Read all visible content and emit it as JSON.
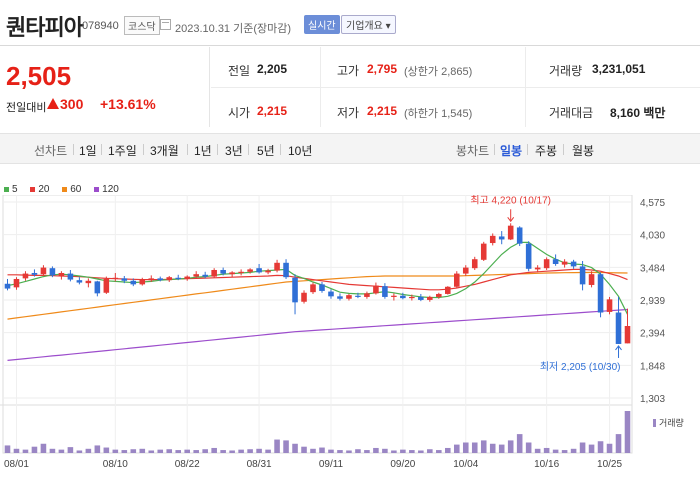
{
  "header": {
    "name": "퀀타피아",
    "code": "078940",
    "market": "코스닥",
    "date": "2023.10.31 기준(장마감)",
    "realtime_label": "실시간",
    "overview_label": "기업개요 ▾"
  },
  "price": {
    "current": "2,505",
    "change_label": "전일대비",
    "change_amount": "300",
    "change_pct": "+13.61%",
    "up_color": "#e62117"
  },
  "stats": {
    "prev_label": "전일",
    "prev": "2,205",
    "high_label": "고가",
    "high": "2,795",
    "upper_limit": "(상한가 2,865)",
    "volume_label": "거래량",
    "volume": "3,231,051",
    "open_label": "시가",
    "open": "2,215",
    "low_label": "저가",
    "low": "2,215",
    "lower_limit": "(하한가 1,545)",
    "amount_label": "거래대금",
    "amount": "8,160 백만"
  },
  "periods": {
    "line_label": "선차트",
    "line_items": [
      "1일",
      "1주일",
      "3개월",
      "1년",
      "3년",
      "5년",
      "10년"
    ],
    "candle_label": "봉차트",
    "candle_items": [
      "일봉",
      "주봉",
      "월봉"
    ],
    "candle_active": "일봉"
  },
  "chart_data": {
    "type": "candlestick",
    "legend": [
      {
        "name": "5",
        "color": "#4caf50"
      },
      {
        "name": "20",
        "color": "#e53935"
      },
      {
        "name": "60",
        "color": "#ef8a1a"
      },
      {
        "name": "120",
        "color": "#9c4dcc"
      }
    ],
    "y_ticks": [
      "4,575",
      "4,030",
      "3,484",
      "2,939",
      "2,394",
      "1,848",
      "1,303"
    ],
    "y_tick_values": [
      4575,
      4030,
      3484,
      2939,
      2394,
      1848,
      1303
    ],
    "ylim": [
      1303,
      4575
    ],
    "x_ticks": [
      "08/01",
      "08/10",
      "08/22",
      "08/31",
      "09/11",
      "09/20",
      "10/04",
      "10/16",
      "10/25"
    ],
    "max_label": "최고 4,220 (10/17)",
    "min_label": "최저 2,205 (10/30)",
    "volume_label": "거래량",
    "up_color": "#e53935",
    "down_color": "#2f6fd6",
    "candles": [
      [
        3210,
        3290,
        3100,
        3130
      ],
      [
        3150,
        3320,
        3110,
        3290
      ],
      [
        3300,
        3420,
        3260,
        3380
      ],
      [
        3390,
        3450,
        3330,
        3360
      ],
      [
        3370,
        3520,
        3340,
        3480
      ],
      [
        3470,
        3500,
        3320,
        3350
      ],
      [
        3340,
        3420,
        3280,
        3390
      ],
      [
        3380,
        3440,
        3250,
        3280
      ],
      [
        3270,
        3320,
        3200,
        3230
      ],
      [
        3220,
        3300,
        3150,
        3260
      ],
      [
        3250,
        3260,
        3000,
        3050
      ],
      [
        3060,
        3330,
        3040,
        3290
      ],
      [
        3300,
        3390,
        3250,
        3310
      ],
      [
        3300,
        3340,
        3220,
        3260
      ],
      [
        3260,
        3300,
        3170,
        3200
      ],
      [
        3200,
        3310,
        3180,
        3280
      ],
      [
        3270,
        3350,
        3240,
        3300
      ],
      [
        3300,
        3330,
        3250,
        3270
      ],
      [
        3270,
        3340,
        3240,
        3320
      ],
      [
        3310,
        3360,
        3270,
        3290
      ],
      [
        3290,
        3350,
        3260,
        3330
      ],
      [
        3330,
        3420,
        3290,
        3370
      ],
      [
        3360,
        3410,
        3300,
        3330
      ],
      [
        3330,
        3470,
        3310,
        3440
      ],
      [
        3440,
        3480,
        3350,
        3380
      ],
      [
        3370,
        3420,
        3320,
        3400
      ],
      [
        3390,
        3450,
        3350,
        3410
      ],
      [
        3410,
        3470,
        3380,
        3450
      ],
      [
        3470,
        3540,
        3380,
        3400
      ],
      [
        3400,
        3460,
        3370,
        3430
      ],
      [
        3430,
        3610,
        3400,
        3560
      ],
      [
        3560,
        3620,
        3290,
        3320
      ],
      [
        3310,
        3370,
        2700,
        2900
      ],
      [
        2910,
        3100,
        2880,
        3060
      ],
      [
        3070,
        3230,
        3040,
        3200
      ],
      [
        3200,
        3240,
        3060,
        3090
      ],
      [
        3080,
        3120,
        2960,
        3000
      ],
      [
        3000,
        3050,
        2930,
        2960
      ],
      [
        2960,
        3040,
        2930,
        3020
      ],
      [
        3010,
        3060,
        2970,
        2990
      ],
      [
        2990,
        3080,
        2960,
        3050
      ],
      [
        3050,
        3230,
        3030,
        3180
      ],
      [
        3170,
        3220,
        2960,
        2990
      ],
      [
        2990,
        3050,
        2930,
        3010
      ],
      [
        3010,
        3060,
        2950,
        2970
      ],
      [
        2970,
        3030,
        2930,
        2990
      ],
      [
        2990,
        3040,
        2920,
        2940
      ],
      [
        2940,
        3010,
        2910,
        2990
      ],
      [
        2990,
        3060,
        2960,
        3040
      ],
      [
        3040,
        3170,
        3030,
        3160
      ],
      [
        3160,
        3420,
        3140,
        3380
      ],
      [
        3380,
        3520,
        3340,
        3480
      ],
      [
        3470,
        3660,
        3440,
        3620
      ],
      [
        3610,
        3910,
        3590,
        3880
      ],
      [
        3890,
        4050,
        3850,
        4010
      ],
      [
        4000,
        4090,
        3870,
        3950
      ],
      [
        3950,
        4220,
        3940,
        4180
      ],
      [
        4150,
        4170,
        3840,
        3880
      ],
      [
        3880,
        3920,
        3420,
        3460
      ],
      [
        3450,
        3520,
        3400,
        3480
      ],
      [
        3470,
        3650,
        3440,
        3620
      ],
      [
        3620,
        3700,
        3510,
        3540
      ],
      [
        3530,
        3620,
        3480,
        3580
      ],
      [
        3580,
        3610,
        3460,
        3500
      ],
      [
        3500,
        3590,
        3100,
        3200
      ],
      [
        3190,
        3420,
        3150,
        3370
      ],
      [
        3370,
        3400,
        2650,
        2730
      ],
      [
        2740,
        2990,
        2700,
        2950
      ],
      [
        2730,
        2990,
        2205,
        2205
      ],
      [
        2215,
        2795,
        2215,
        2505
      ]
    ],
    "ma5": [
      3180,
      3210,
      3250,
      3290,
      3330,
      3360,
      3370,
      3360,
      3340,
      3320,
      3290,
      3260,
      3250,
      3240,
      3230,
      3240,
      3250,
      3270,
      3280,
      3290,
      3300,
      3320,
      3330,
      3350,
      3370,
      3380,
      3390,
      3400,
      3420,
      3430,
      3440,
      3450,
      3350,
      3300,
      3240,
      3190,
      3130,
      3070,
      3050,
      3040,
      3040,
      3060,
      3080,
      3060,
      3030,
      3010,
      2990,
      2980,
      2980,
      3000,
      3050,
      3130,
      3240,
      3380,
      3540,
      3700,
      3820,
      3900,
      3900,
      3800,
      3700,
      3620,
      3560,
      3540,
      3530,
      3480,
      3370,
      3200,
      3000,
      2700
    ],
    "ma20": [
      3360,
      3360,
      3355,
      3350,
      3350,
      3345,
      3340,
      3335,
      3330,
      3320,
      3310,
      3300,
      3295,
      3290,
      3285,
      3280,
      3280,
      3280,
      3285,
      3290,
      3295,
      3300,
      3305,
      3310,
      3315,
      3320,
      3325,
      3330,
      3335,
      3340,
      3350,
      3345,
      3320,
      3300,
      3280,
      3260,
      3240,
      3220,
      3200,
      3190,
      3180,
      3170,
      3160,
      3150,
      3140,
      3130,
      3120,
      3110,
      3110,
      3120,
      3140,
      3170,
      3200,
      3240,
      3280,
      3320,
      3360,
      3380,
      3400,
      3410,
      3420,
      3430,
      3440,
      3450,
      3450,
      3440,
      3420,
      3380,
      3340,
      3280
    ],
    "ma60": [
      2620,
      2640,
      2660,
      2680,
      2700,
      2720,
      2740,
      2760,
      2780,
      2800,
      2820,
      2840,
      2860,
      2880,
      2900,
      2920,
      2940,
      2960,
      2980,
      3000,
      3020,
      3040,
      3060,
      3080,
      3100,
      3120,
      3140,
      3160,
      3180,
      3200,
      3220,
      3240,
      3250,
      3260,
      3270,
      3280,
      3290,
      3300,
      3310,
      3320,
      3330,
      3335,
      3340,
      3340,
      3340,
      3340,
      3340,
      3340,
      3340,
      3340,
      3340,
      3345,
      3350,
      3355,
      3360,
      3365,
      3370,
      3375,
      3380,
      3385,
      3390,
      3392,
      3394,
      3396,
      3398,
      3400,
      3398,
      3395,
      3392,
      3390
    ],
    "ma120": [
      1930,
      1945,
      1960,
      1975,
      1990,
      2005,
      2020,
      2035,
      2050,
      2065,
      2080,
      2095,
      2110,
      2125,
      2140,
      2155,
      2170,
      2185,
      2200,
      2215,
      2230,
      2245,
      2260,
      2275,
      2290,
      2305,
      2320,
      2335,
      2350,
      2365,
      2380,
      2395,
      2410,
      2420,
      2430,
      2440,
      2450,
      2460,
      2470,
      2480,
      2490,
      2500,
      2510,
      2520,
      2530,
      2540,
      2550,
      2560,
      2570,
      2580,
      2590,
      2600,
      2610,
      2620,
      2630,
      2640,
      2650,
      2660,
      2670,
      2680,
      2690,
      2700,
      2710,
      2720,
      2730,
      2740,
      2750,
      2760,
      2770,
      2780
    ],
    "volume": [
      0.18,
      0.1,
      0.08,
      0.15,
      0.22,
      0.1,
      0.08,
      0.14,
      0.06,
      0.1,
      0.18,
      0.13,
      0.08,
      0.07,
      0.09,
      0.1,
      0.06,
      0.08,
      0.09,
      0.07,
      0.08,
      0.07,
      0.09,
      0.12,
      0.07,
      0.06,
      0.08,
      0.09,
      0.1,
      0.08,
      0.32,
      0.3,
      0.22,
      0.15,
      0.1,
      0.13,
      0.08,
      0.07,
      0.06,
      0.09,
      0.07,
      0.12,
      0.1,
      0.06,
      0.08,
      0.07,
      0.06,
      0.09,
      0.07,
      0.12,
      0.2,
      0.25,
      0.25,
      0.3,
      0.22,
      0.2,
      0.3,
      0.45,
      0.25,
      0.1,
      0.12,
      0.08,
      0.07,
      0.1,
      0.25,
      0.2,
      0.28,
      0.22,
      0.45,
      1.0
    ]
  }
}
